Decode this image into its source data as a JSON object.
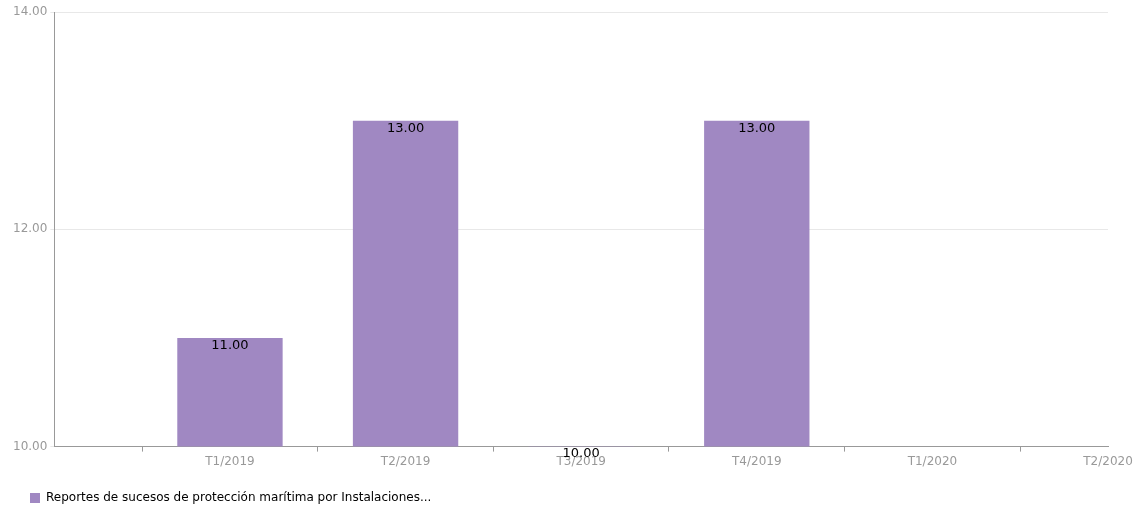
{
  "chart_data": {
    "type": "bar",
    "categories": [
      null,
      "T1/2019",
      "T2/2019",
      "T3/2019",
      "T4/2019",
      "T1/2020",
      "T2/2020"
    ],
    "series": [
      {
        "name": "Reportes de sucesos de protección marítima por Instalaciones...",
        "color": "#a088c2",
        "values": [
          null,
          11,
          13,
          10,
          13,
          null,
          null
        ],
        "value_labels": [
          null,
          "11.00",
          "13.00",
          "10.00",
          "13.00",
          null,
          null
        ]
      }
    ],
    "ylim": [
      10,
      14
    ],
    "yticks": [
      {
        "value": 10,
        "label": "10.00"
      },
      {
        "value": 12,
        "label": "12.00"
      },
      {
        "value": 14,
        "label": "14.00"
      }
    ],
    "grid": "y",
    "legend": "bottom left"
  }
}
